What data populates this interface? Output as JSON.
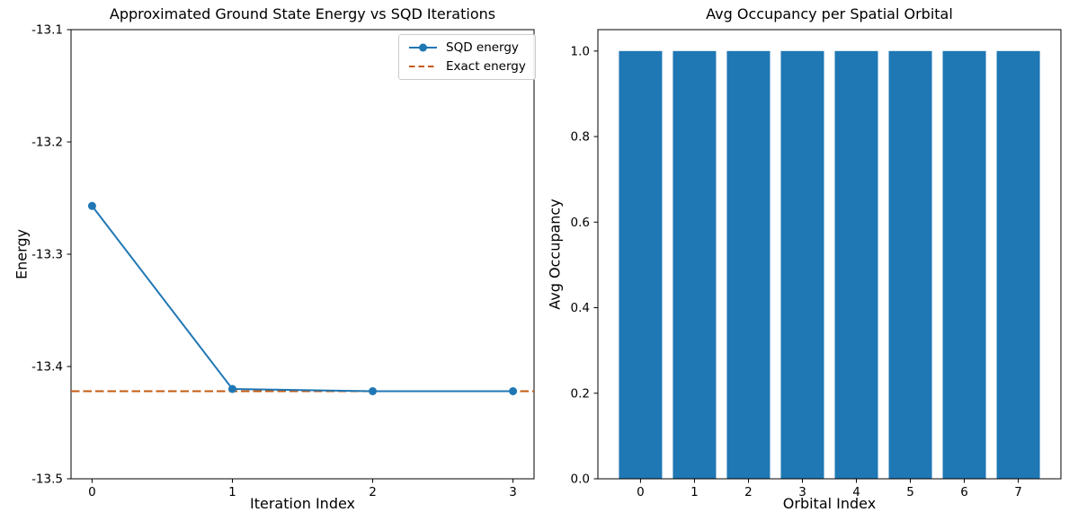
{
  "figure": {
    "background": "#ffffff",
    "text_color": "#000000",
    "spine_color": "#000000"
  },
  "chart_data": [
    {
      "type": "line",
      "title": "Approximated Ground State Energy vs SQD Iterations",
      "xlabel": "Iteration Index",
      "ylabel": "Energy",
      "x": [
        0,
        1,
        2,
        3
      ],
      "series": [
        {
          "name": "SQD energy",
          "values": [
            -13.257,
            -13.42,
            -13.422,
            -13.422
          ],
          "color": "#1f77b4",
          "linestyle": "solid",
          "marker": "circle"
        }
      ],
      "hline": {
        "name": "Exact energy",
        "value": -13.422,
        "color": "#c55a11",
        "linestyle": "dashed"
      },
      "xlim": [
        -0.15,
        3.15
      ],
      "ylim": [
        -13.5,
        -13.1
      ],
      "xticks": [
        0,
        1,
        2,
        3
      ],
      "xtick_labels": [
        "0",
        "1",
        "2",
        "3"
      ],
      "yticks": [
        -13.5,
        -13.4,
        -13.3,
        -13.2,
        -13.1
      ],
      "ytick_labels": [
        "-13.5",
        "-13.4",
        "-13.3",
        "-13.2",
        "-13.1"
      ],
      "grid": false,
      "legend_position": "upper right"
    },
    {
      "type": "bar",
      "title": "Avg Occupancy per Spatial Orbital",
      "xlabel": "Orbital Index",
      "ylabel": "Avg Occupancy",
      "categories": [
        "0",
        "1",
        "2",
        "3",
        "4",
        "5",
        "6",
        "7"
      ],
      "values": [
        1.0,
        1.0,
        1.0,
        1.0,
        1.0,
        1.0,
        1.0,
        1.0
      ],
      "bar_color": "#1f77b4",
      "bar_width": 0.8,
      "xlim": [
        -0.79,
        7.79
      ],
      "ylim": [
        0,
        1.05
      ],
      "yticks": [
        0.0,
        0.2,
        0.4,
        0.6,
        0.8,
        1.0
      ],
      "ytick_labels": [
        "0.0",
        "0.2",
        "0.4",
        "0.6",
        "0.8",
        "1.0"
      ],
      "grid": false,
      "legend_position": "none"
    }
  ]
}
